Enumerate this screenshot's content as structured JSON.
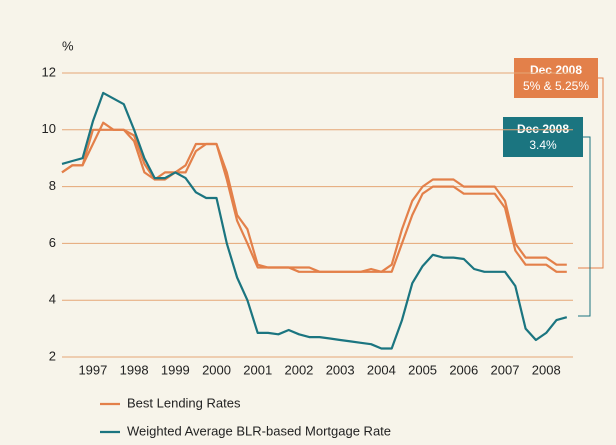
{
  "chart_data": {
    "type": "line",
    "ylabel": "%",
    "ylim": [
      2,
      12
    ],
    "yticks": [
      2,
      4,
      6,
      8,
      10,
      12
    ],
    "xlim": [
      1996.75,
      2009.15
    ],
    "xticks": [
      {
        "value": 1997.5,
        "label": "1997"
      },
      {
        "value": 1998.5,
        "label": "1998"
      },
      {
        "value": 1999.5,
        "label": "1999"
      },
      {
        "value": 2000.5,
        "label": "2000"
      },
      {
        "value": 2001.5,
        "label": "2001"
      },
      {
        "value": 2002.5,
        "label": "2002"
      },
      {
        "value": 2003.5,
        "label": "2003"
      },
      {
        "value": 2004.5,
        "label": "2004"
      },
      {
        "value": 2005.5,
        "label": "2005"
      },
      {
        "value": 2006.5,
        "label": "2006"
      },
      {
        "value": 2007.5,
        "label": "2007"
      },
      {
        "value": 2008.5,
        "label": "2008"
      }
    ],
    "grid": true,
    "series": [
      {
        "name": "Best Lending Rates",
        "color": "#e3804a",
        "x": [
          1996.75,
          1997,
          1997.25,
          1997.5,
          1997.75,
          1998,
          1998.25,
          1998.5,
          1998.75,
          1999,
          1999.25,
          1999.5,
          1999.75,
          2000,
          2000.25,
          2000.5,
          2000.75,
          2001,
          2001.25,
          2001.5,
          2001.75,
          2002,
          2002.25,
          2002.5,
          2002.75,
          2003,
          2003.25,
          2003.5,
          2003.75,
          2004,
          2004.25,
          2004.5,
          2004.75,
          2005,
          2005.25,
          2005.5,
          2005.75,
          2006,
          2006.25,
          2006.5,
          2006.75,
          2007,
          2007.25,
          2007.5,
          2007.75,
          2008,
          2008.25,
          2008.5,
          2008.75,
          2009
        ],
        "values": [
          8.5,
          8.75,
          8.75,
          10.0,
          10.0,
          10.0,
          10.0,
          9.8,
          8.8,
          8.25,
          8.5,
          8.5,
          8.75,
          9.5,
          9.5,
          9.5,
          8.5,
          7.0,
          6.5,
          5.25,
          5.15,
          5.15,
          5.15,
          5.15,
          5.15,
          5.0,
          5.0,
          5.0,
          5.0,
          5.0,
          5.1,
          5.0,
          5.25,
          6.5,
          7.5,
          8.0,
          8.25,
          8.25,
          8.25,
          8.0,
          8.0,
          8.0,
          8.0,
          7.5,
          6.0,
          5.5,
          5.5,
          5.5,
          5.25,
          5.25
        ],
        "values2": [
          8.5,
          8.75,
          8.75,
          9.5,
          10.25,
          10.0,
          10.0,
          9.6,
          8.5,
          8.25,
          8.25,
          8.5,
          8.5,
          9.25,
          9.5,
          9.5,
          8.25,
          6.8,
          6.0,
          5.15,
          5.15,
          5.15,
          5.15,
          5.0,
          5.0,
          5.0,
          5.0,
          5.0,
          5.0,
          5.0,
          5.0,
          5.0,
          5.0,
          6.0,
          7.0,
          7.75,
          8.0,
          8.0,
          8.0,
          7.75,
          7.75,
          7.75,
          7.75,
          7.25,
          5.75,
          5.25,
          5.25,
          5.25,
          5.0,
          5.0
        ]
      },
      {
        "name": "Weighted Average BLR-based Mortgage Rate",
        "color": "#1b7580",
        "x": [
          1996.75,
          1997,
          1997.25,
          1997.5,
          1997.75,
          1998,
          1998.25,
          1998.5,
          1998.75,
          1999,
          1999.25,
          1999.5,
          1999.75,
          2000,
          2000.25,
          2000.5,
          2000.75,
          2001,
          2001.25,
          2001.5,
          2001.75,
          2002,
          2002.25,
          2002.5,
          2002.75,
          2003,
          2003.25,
          2003.5,
          2003.75,
          2004,
          2004.25,
          2004.5,
          2004.75,
          2005,
          2005.25,
          2005.5,
          2005.75,
          2006,
          2006.25,
          2006.5,
          2006.75,
          2007,
          2007.25,
          2007.5,
          2007.75,
          2008,
          2008.25,
          2008.5,
          2008.75,
          2009
        ],
        "values": [
          8.8,
          8.9,
          9.0,
          10.3,
          11.3,
          11.1,
          10.9,
          10.0,
          9.0,
          8.3,
          8.3,
          8.5,
          8.3,
          7.8,
          7.6,
          7.6,
          6.0,
          4.8,
          4.0,
          2.85,
          2.85,
          2.8,
          2.95,
          2.8,
          2.7,
          2.7,
          2.65,
          2.6,
          2.55,
          2.5,
          2.45,
          2.3,
          2.3,
          3.3,
          4.6,
          5.2,
          5.6,
          5.5,
          5.5,
          5.45,
          5.1,
          5.0,
          5.0,
          5.0,
          4.5,
          3.0,
          2.6,
          2.85,
          3.3,
          3.4
        ]
      }
    ],
    "annotations": [
      {
        "title": "Dec 2008",
        "text": "5% & 5.25%"
      },
      {
        "title": "Dec 2008",
        "text": "3.4%"
      }
    ]
  }
}
